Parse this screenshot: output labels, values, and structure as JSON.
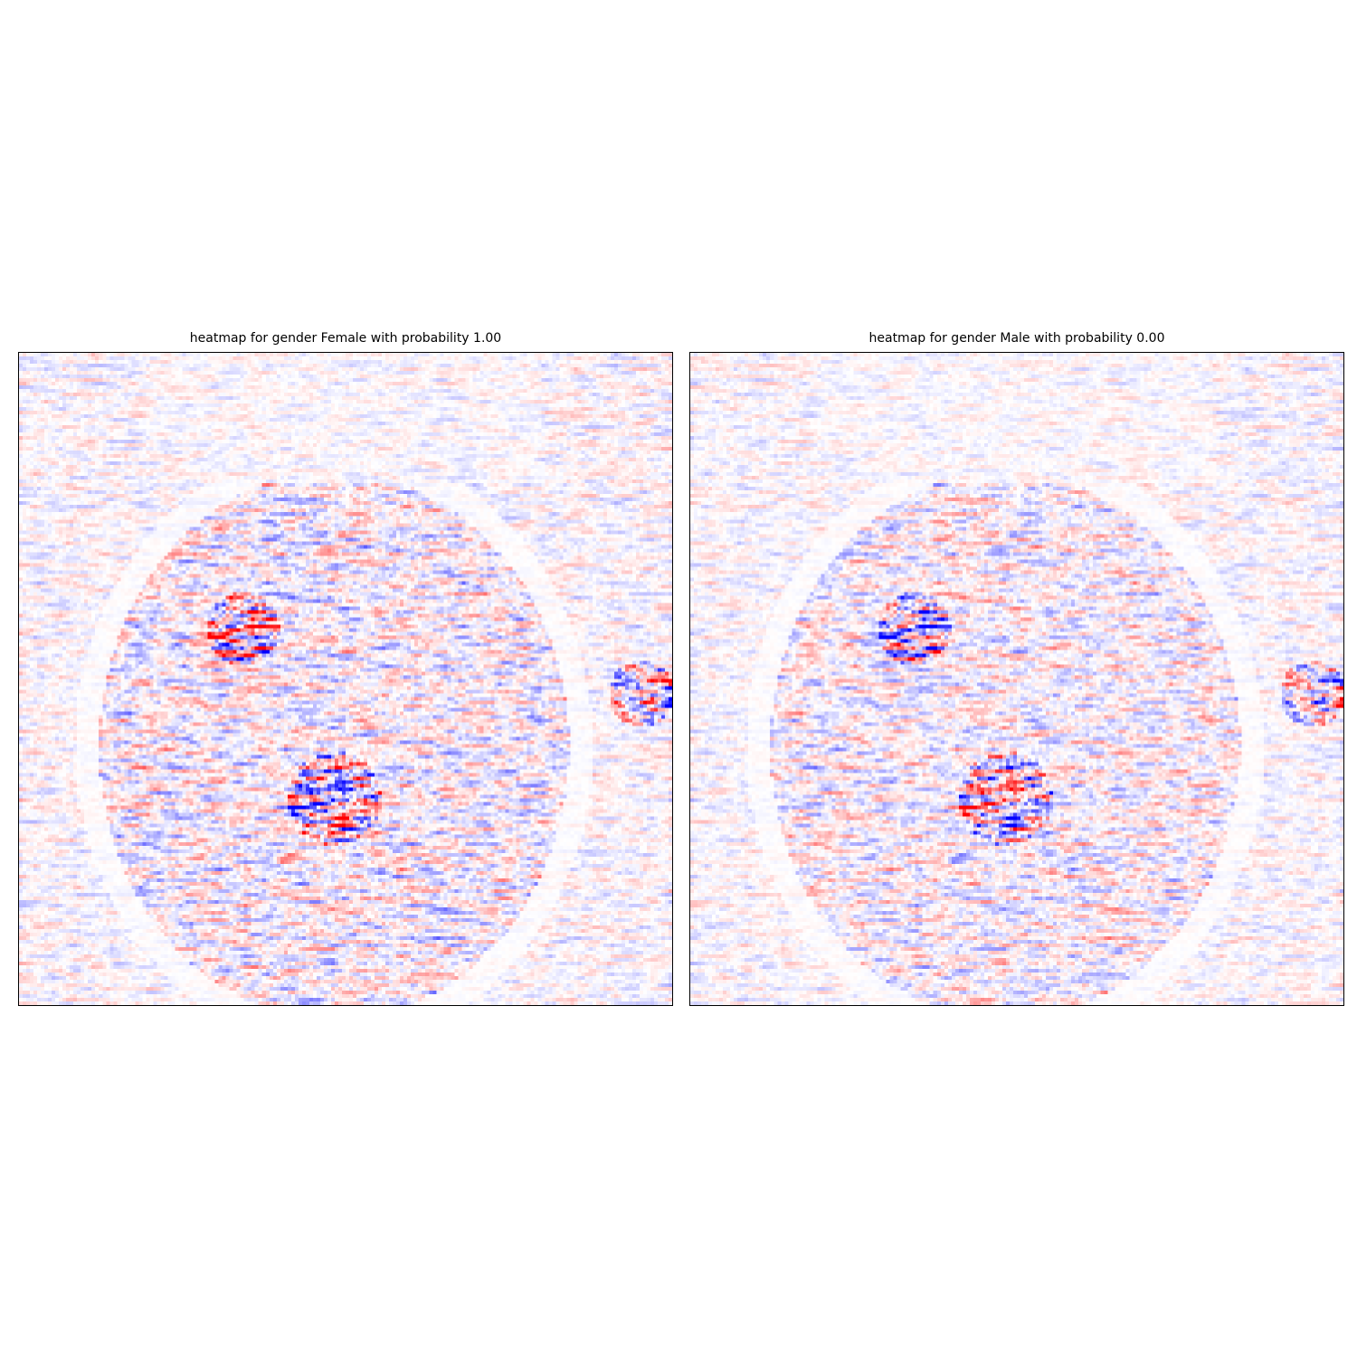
{
  "chart_data": [
    {
      "type": "heatmap",
      "title": "heatmap for gender Female with probability 1.00",
      "colormap": "bwr",
      "colors": {
        "negative": "#0000ff",
        "zero": "#ffffff",
        "positive": "#ff0000"
      },
      "axes_ticks": false,
      "grid": false
    },
    {
      "type": "heatmap",
      "title": "heatmap for gender Male with probability 0.00",
      "colormap": "bwr",
      "colors": {
        "negative": "#0000ff",
        "zero": "#ffffff",
        "positive": "#ff0000"
      },
      "axes_ticks": false,
      "grid": false
    }
  ]
}
